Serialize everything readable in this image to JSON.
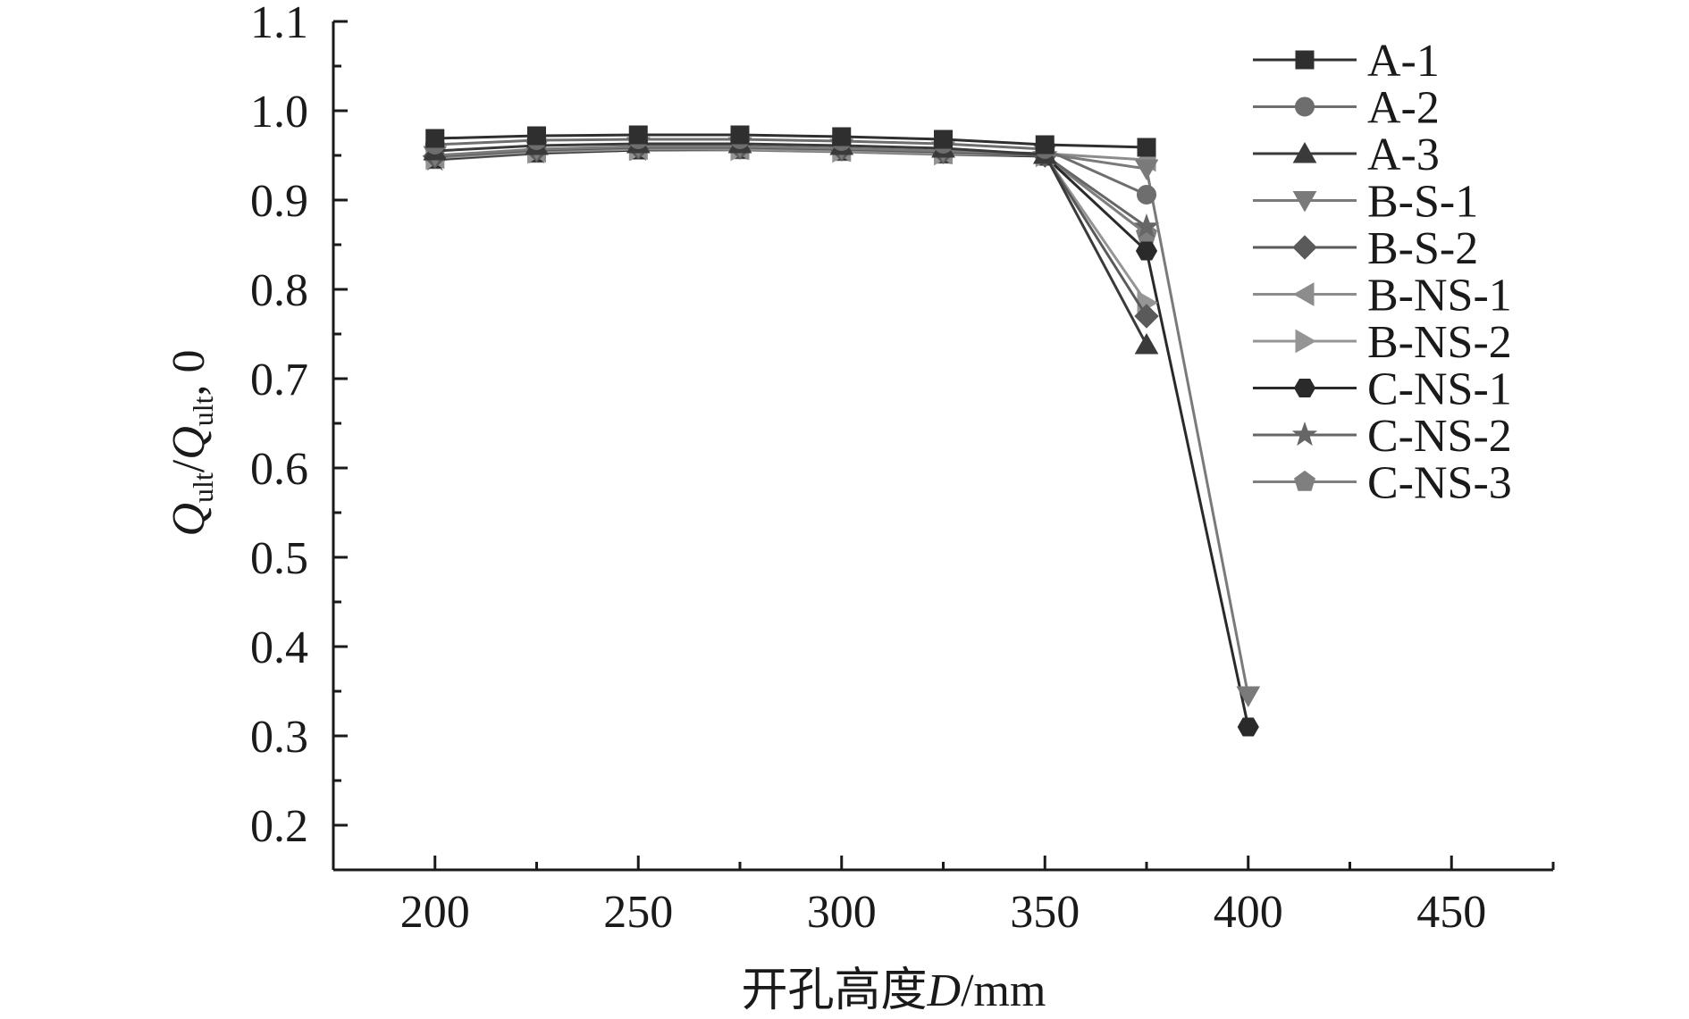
{
  "chart_data": {
    "type": "line",
    "title": "",
    "xlabel": "开孔高度D/mm",
    "xlabel_parts": {
      "cn": "开孔高度",
      "var": "D",
      "unit": "/mm"
    },
    "ylabel_parts": {
      "q1": "Q",
      "s1": "ult",
      "slash": "/",
      "q2": "Q",
      "s2": "ult",
      "tail": ", 0"
    },
    "xlim": [
      175,
      475
    ],
    "ylim": [
      0.15,
      1.1
    ],
    "xticks": [
      200,
      250,
      300,
      350,
      400,
      450
    ],
    "xtick_labels": [
      "200",
      "250",
      "300",
      "350",
      "400",
      "450"
    ],
    "yticks": [
      0.2,
      0.3,
      0.4,
      0.5,
      0.6,
      0.7,
      0.8,
      0.9,
      1.0,
      1.1
    ],
    "ytick_labels": [
      "0.2",
      "0.3",
      "0.4",
      "0.5",
      "0.6",
      "0.7",
      "0.8",
      "0.9",
      "1.0",
      "1.1"
    ],
    "grid": false,
    "legend_position": "top-right",
    "series": [
      {
        "name": "A-1",
        "marker": "square",
        "color": "#2f2f2f",
        "x": [
          200,
          225,
          250,
          275,
          300,
          325,
          350,
          375
        ],
        "y": [
          0.969,
          0.972,
          0.973,
          0.973,
          0.971,
          0.968,
          0.962,
          0.959
        ]
      },
      {
        "name": "A-2",
        "marker": "circle",
        "color": "#6e6e6e",
        "x": [
          200,
          225,
          250,
          275,
          300,
          325,
          350,
          375
        ],
        "y": [
          0.962,
          0.967,
          0.968,
          0.968,
          0.966,
          0.963,
          0.957,
          0.906
        ]
      },
      {
        "name": "A-3",
        "marker": "triangle-up",
        "color": "#3a3a3a",
        "x": [
          200,
          225,
          250,
          275,
          300,
          325,
          350,
          375
        ],
        "y": [
          0.955,
          0.961,
          0.963,
          0.963,
          0.961,
          0.958,
          0.951,
          0.738
        ]
      },
      {
        "name": "B-S-1",
        "marker": "triangle-down",
        "color": "#7a7a7a",
        "x": [
          200,
          225,
          250,
          275,
          300,
          325,
          350,
          375,
          400
        ],
        "y": [
          0.95,
          0.957,
          0.96,
          0.96,
          0.958,
          0.955,
          0.952,
          0.935,
          0.345
        ]
      },
      {
        "name": "B-S-2",
        "marker": "diamond",
        "color": "#5a5a5a",
        "x": [
          200,
          225,
          250,
          275,
          300,
          325,
          350,
          375
        ],
        "y": [
          0.949,
          0.956,
          0.959,
          0.959,
          0.957,
          0.954,
          0.95,
          0.77
        ]
      },
      {
        "name": "B-NS-1",
        "marker": "triangle-left",
        "color": "#8c8c8c",
        "x": [
          200,
          225,
          250,
          275,
          300,
          325,
          350,
          375
        ],
        "y": [
          0.948,
          0.955,
          0.958,
          0.958,
          0.956,
          0.953,
          0.952,
          0.945
        ]
      },
      {
        "name": "B-NS-2",
        "marker": "triangle-right",
        "color": "#959595",
        "x": [
          200,
          225,
          250,
          275,
          300,
          325,
          350,
          375
        ],
        "y": [
          0.947,
          0.954,
          0.957,
          0.957,
          0.955,
          0.952,
          0.95,
          0.785
        ]
      },
      {
        "name": "C-NS-1",
        "marker": "hexagon",
        "color": "#2a2a2a",
        "x": [
          200,
          225,
          250,
          275,
          300,
          325,
          350,
          375,
          400
        ],
        "y": [
          0.946,
          0.953,
          0.956,
          0.957,
          0.955,
          0.952,
          0.949,
          0.843,
          0.31
        ]
      },
      {
        "name": "C-NS-2",
        "marker": "star",
        "color": "#666666",
        "x": [
          200,
          225,
          250,
          275,
          300,
          325,
          350,
          375
        ],
        "y": [
          0.945,
          0.953,
          0.956,
          0.957,
          0.955,
          0.952,
          0.95,
          0.87
        ]
      },
      {
        "name": "C-NS-3",
        "marker": "pentagon",
        "color": "#7f7f7f",
        "x": [
          200,
          225,
          250,
          275,
          300,
          325,
          350,
          375
        ],
        "y": [
          0.945,
          0.952,
          0.956,
          0.956,
          0.954,
          0.951,
          0.949,
          0.862
        ]
      }
    ]
  }
}
